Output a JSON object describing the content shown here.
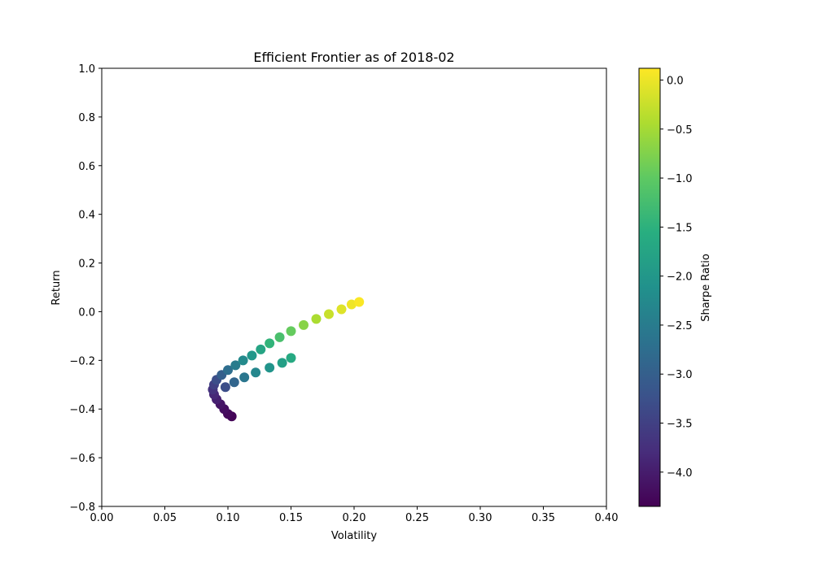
{
  "chart_data": {
    "type": "scatter",
    "title": "Efficient Frontier as of 2018-02",
    "xlabel": "Volatility",
    "ylabel": "Return",
    "xlim": [
      0.0,
      0.4
    ],
    "ylim": [
      -0.8,
      1.0
    ],
    "xticks": [
      "0.00",
      "0.05",
      "0.10",
      "0.15",
      "0.20",
      "0.25",
      "0.30",
      "0.35",
      "0.40"
    ],
    "yticks": [
      "−0.8",
      "−0.6",
      "−0.4",
      "−0.2",
      "0.0",
      "0.2",
      "0.4",
      "0.6",
      "0.8",
      "1.0"
    ],
    "grid": false,
    "colorbar": {
      "label": "Sharpe Ratio",
      "colormap": "viridis",
      "range": [
        -4.35,
        0.12
      ],
      "ticks": [
        "−4.0",
        "−3.5",
        "−3.0",
        "−2.5",
        "−2.0",
        "−1.5",
        "−1.0",
        "−0.5",
        "0.0"
      ]
    },
    "marker_color_by": "Sharpe Ratio",
    "points": [
      {
        "x": 0.103,
        "y": -0.43,
        "sharpe": -4.3
      },
      {
        "x": 0.1,
        "y": -0.42,
        "sharpe": -4.25
      },
      {
        "x": 0.097,
        "y": -0.4,
        "sharpe": -4.18
      },
      {
        "x": 0.094,
        "y": -0.38,
        "sharpe": -4.1
      },
      {
        "x": 0.091,
        "y": -0.36,
        "sharpe": -3.95
      },
      {
        "x": 0.089,
        "y": -0.34,
        "sharpe": -3.85
      },
      {
        "x": 0.088,
        "y": -0.32,
        "sharpe": -3.7
      },
      {
        "x": 0.089,
        "y": -0.3,
        "sharpe": -3.5
      },
      {
        "x": 0.091,
        "y": -0.28,
        "sharpe": -3.3
      },
      {
        "x": 0.095,
        "y": -0.26,
        "sharpe": -3.0
      },
      {
        "x": 0.1,
        "y": -0.24,
        "sharpe": -2.75
      },
      {
        "x": 0.106,
        "y": -0.22,
        "sharpe": -2.5
      },
      {
        "x": 0.112,
        "y": -0.2,
        "sharpe": -2.25
      },
      {
        "x": 0.119,
        "y": -0.18,
        "sharpe": -2.0
      },
      {
        "x": 0.126,
        "y": -0.155,
        "sharpe": -1.75
      },
      {
        "x": 0.133,
        "y": -0.13,
        "sharpe": -1.45
      },
      {
        "x": 0.141,
        "y": -0.105,
        "sharpe": -1.2
      },
      {
        "x": 0.15,
        "y": -0.08,
        "sharpe": -0.95
      },
      {
        "x": 0.16,
        "y": -0.055,
        "sharpe": -0.7
      },
      {
        "x": 0.17,
        "y": -0.03,
        "sharpe": -0.45
      },
      {
        "x": 0.18,
        "y": -0.01,
        "sharpe": -0.25
      },
      {
        "x": 0.19,
        "y": 0.01,
        "sharpe": -0.1
      },
      {
        "x": 0.198,
        "y": 0.03,
        "sharpe": 0.02
      },
      {
        "x": 0.204,
        "y": 0.04,
        "sharpe": 0.1
      },
      {
        "x": 0.15,
        "y": -0.19,
        "sharpe": -1.65
      },
      {
        "x": 0.143,
        "y": -0.21,
        "sharpe": -1.85
      },
      {
        "x": 0.133,
        "y": -0.23,
        "sharpe": -2.05
      },
      {
        "x": 0.122,
        "y": -0.25,
        "sharpe": -2.3
      },
      {
        "x": 0.113,
        "y": -0.27,
        "sharpe": -2.6
      },
      {
        "x": 0.105,
        "y": -0.29,
        "sharpe": -2.9
      },
      {
        "x": 0.098,
        "y": -0.31,
        "sharpe": -3.3
      }
    ]
  }
}
